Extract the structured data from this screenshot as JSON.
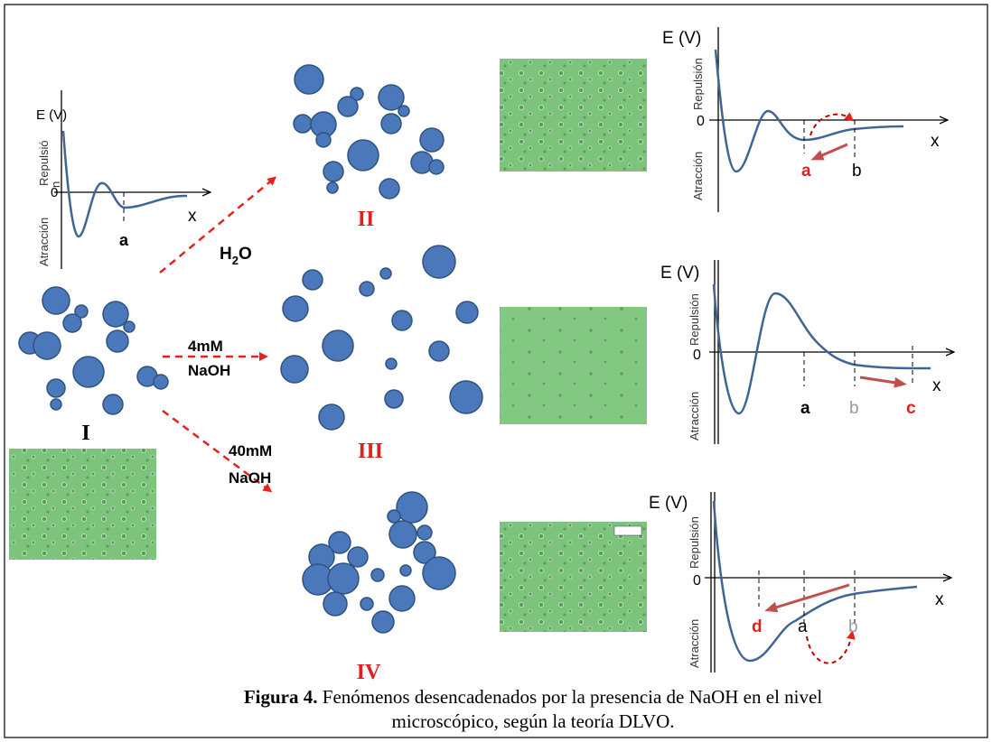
{
  "plots": [
    {
      "y_label": "E (V)",
      "repulsion": [
        "Repulsió",
        "n"
      ],
      "attraction": "Atracción",
      "zero": "0",
      "x_label": "x",
      "markers": [
        "a"
      ]
    },
    {
      "y_label": "E (V)",
      "repulsion": "Repulsión",
      "attraction": "Atracción",
      "zero": "0",
      "x_label": "x",
      "markers": [
        "a",
        "b"
      ]
    },
    {
      "y_label": "E (V)",
      "repulsion": "Repulsión",
      "attraction": "Atracción",
      "zero": "0",
      "x_label": "x",
      "markers": [
        "a",
        "b",
        "c"
      ]
    },
    {
      "y_label": "E (V)",
      "repulsion": "Repulsión",
      "attraction": "Atracción",
      "zero": "0",
      "x_label": "x",
      "markers": [
        "d",
        "a",
        "b"
      ]
    }
  ],
  "states": [
    "I",
    "II",
    "III",
    "IV"
  ],
  "arrows": [
    {
      "label": [
        "H",
        "2",
        "O"
      ]
    },
    {
      "label": [
        "4mM",
        "NaOH"
      ]
    },
    {
      "label": [
        "40mM",
        "NaOH"
      ]
    }
  ],
  "caption": {
    "label": "Figura 4.",
    "lines": [
      "Fenómenos desencadenados por la presencia de NaOH en el nivel",
      "microscópico, según la teoría DLVO."
    ]
  }
}
